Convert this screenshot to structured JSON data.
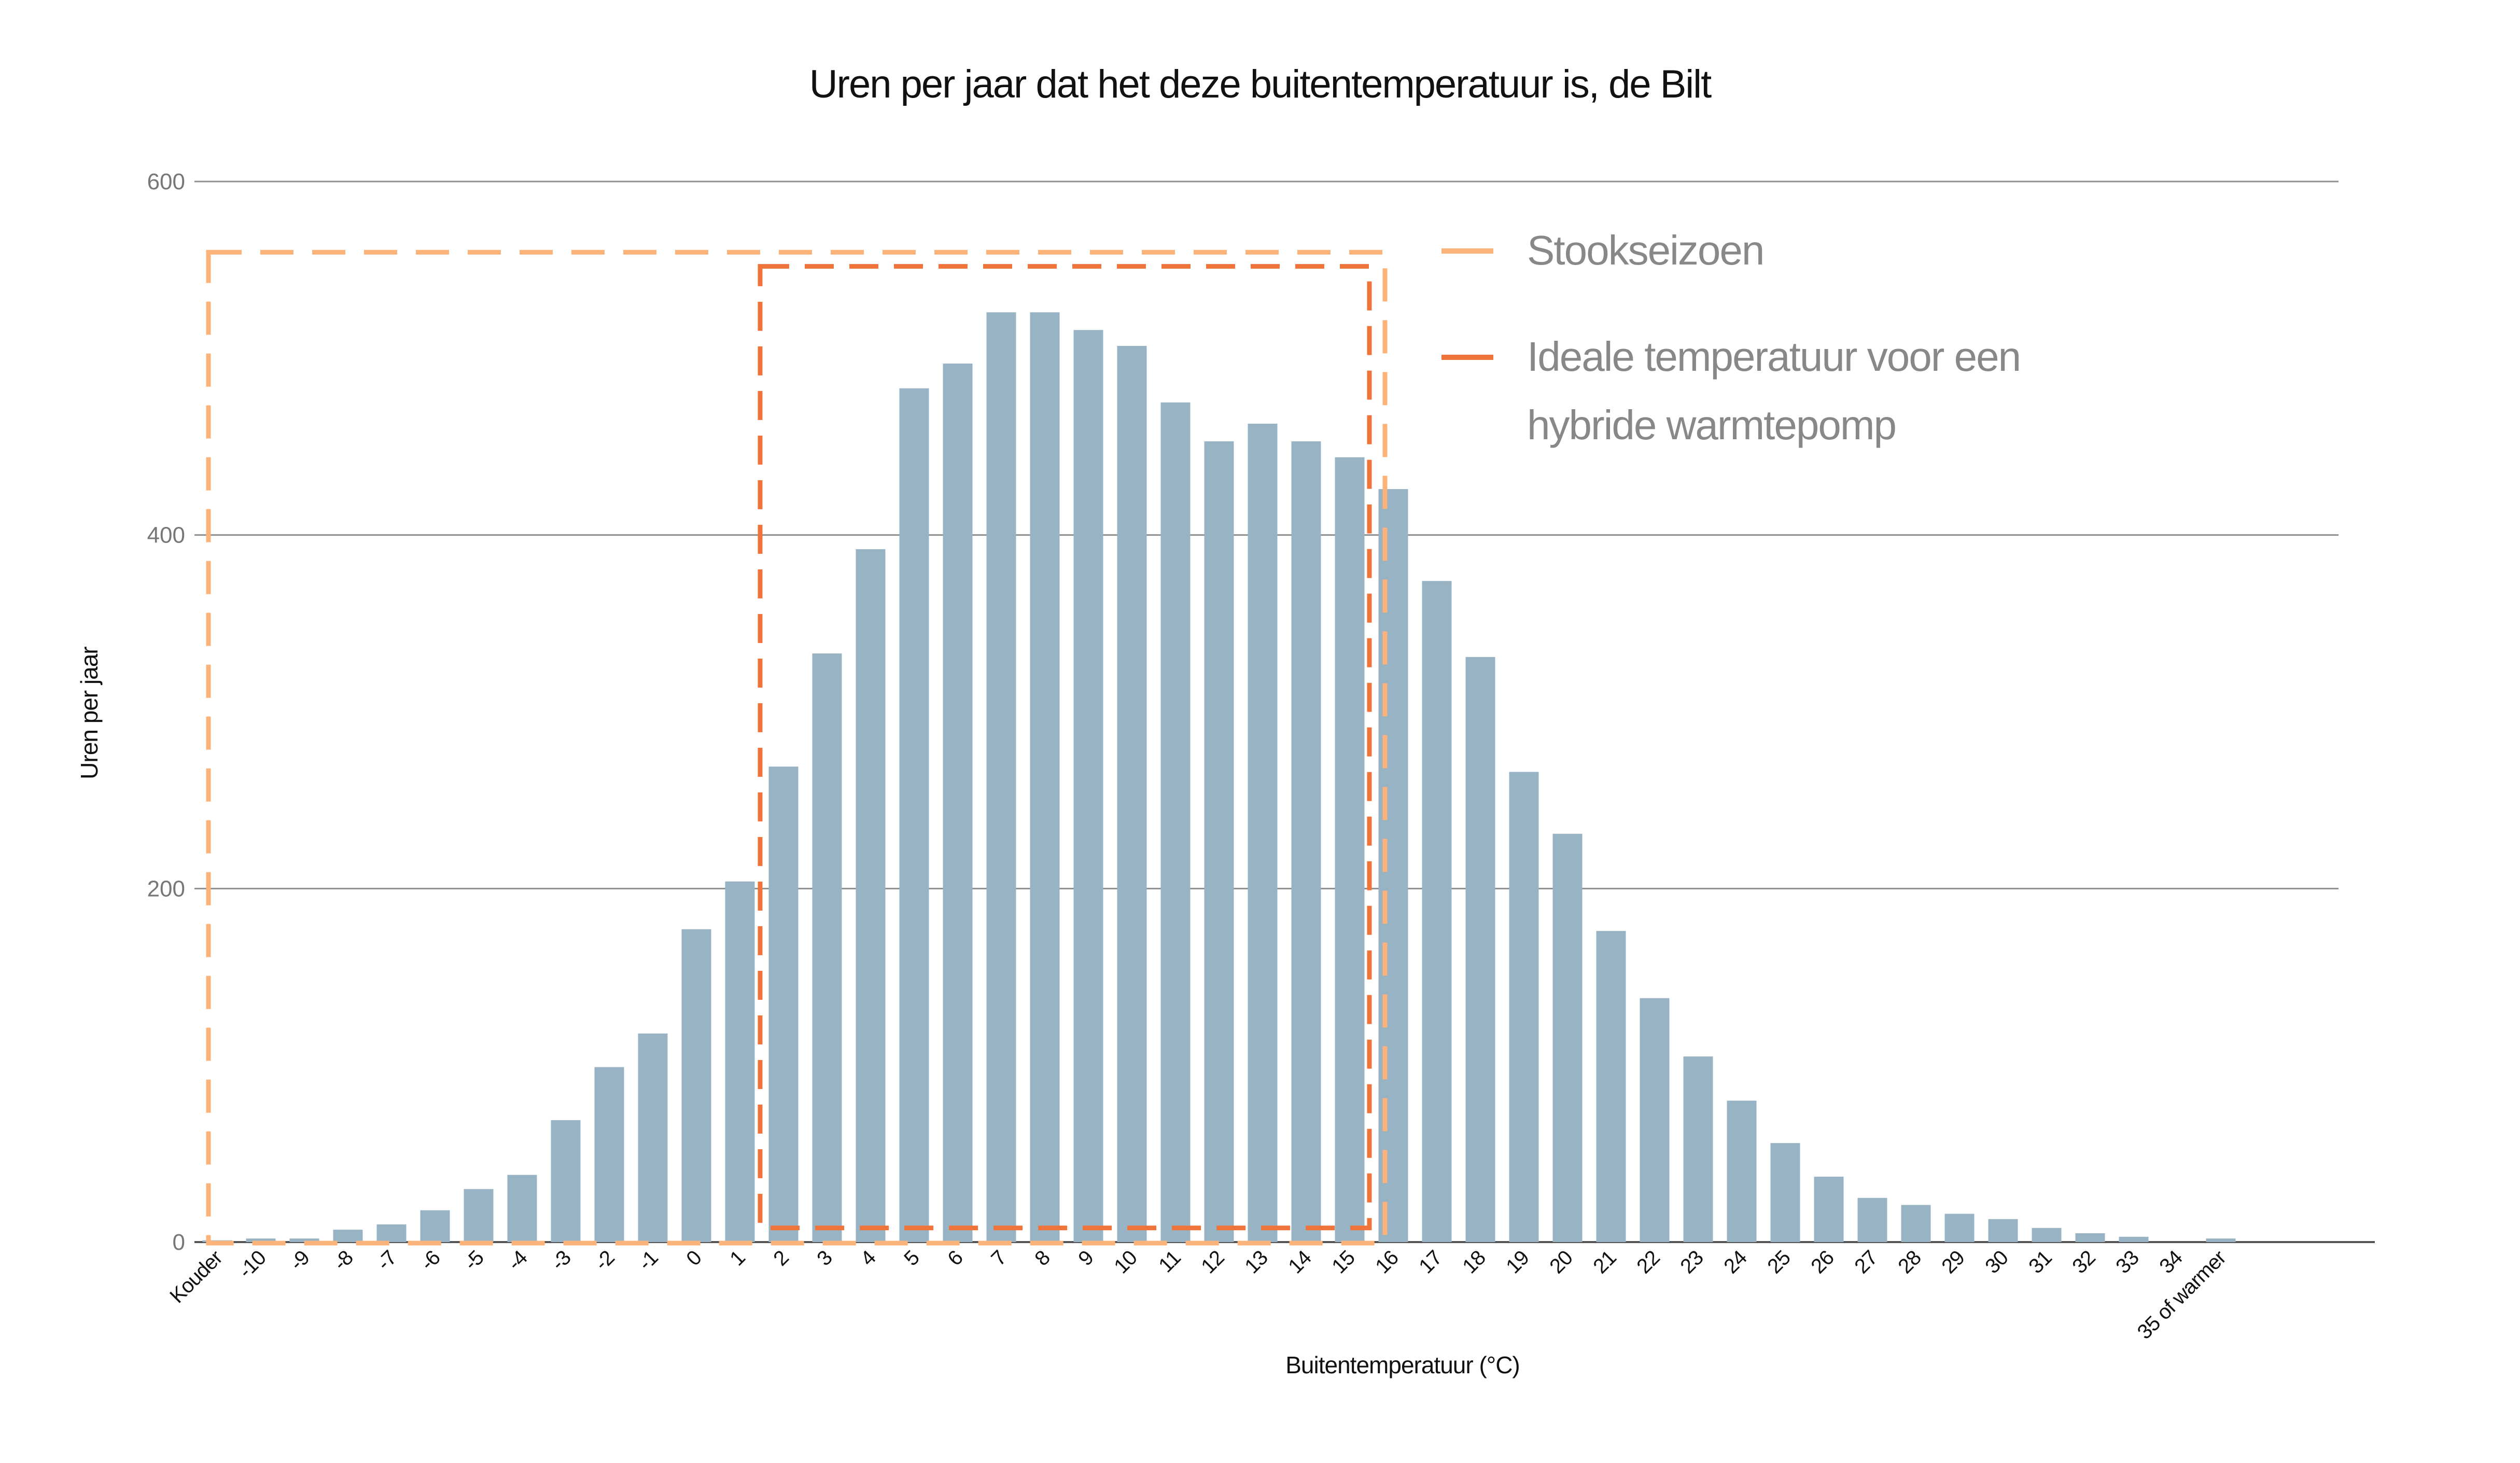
{
  "chart_data": {
    "type": "bar",
    "title": "Uren per jaar dat het deze buitentemperatuur is, de Bilt",
    "xlabel": "Buitentemperatuur (°C)",
    "ylabel": "Uren per jaar",
    "ylim": [
      0,
      600
    ],
    "yticks": [
      0,
      200,
      400,
      600
    ],
    "grid": true,
    "categories": [
      "Kouder",
      "-10",
      "-9",
      "-8",
      "-7",
      "-6",
      "-5",
      "-4",
      "-3",
      "-2",
      "-1",
      "0",
      "1",
      "2",
      "3",
      "4",
      "5",
      "6",
      "7",
      "8",
      "9",
      "10",
      "11",
      "12",
      "13",
      "14",
      "15",
      "16",
      "17",
      "18",
      "19",
      "20",
      "21",
      "22",
      "23",
      "24",
      "25",
      "26",
      "27",
      "28",
      "29",
      "30",
      "31",
      "32",
      "33",
      "34",
      "35 of warmer"
    ],
    "values": [
      1,
      2,
      2,
      7,
      10,
      18,
      30,
      38,
      69,
      99,
      118,
      177,
      204,
      269,
      333,
      392,
      483,
      497,
      526,
      526,
      516,
      507,
      475,
      453,
      463,
      453,
      444,
      426,
      374,
      331,
      266,
      231,
      176,
      138,
      105,
      80,
      56,
      37,
      25,
      21,
      16,
      13,
      8,
      5,
      3,
      0,
      2
    ],
    "bar_color": "#98b3c3",
    "legend": [
      {
        "label_lines": [
          "Stookseizoen"
        ],
        "color": "#fbb37a"
      },
      {
        "label_lines": [
          "Ideale temperatuur voor een",
          "hybride warmtepomp"
        ],
        "color": "#ef743c"
      }
    ],
    "legend_position": "right",
    "highlight_regions": [
      {
        "legend_index": 0,
        "from_category": "Kouder",
        "to_category": "15",
        "value_top": 560
      },
      {
        "legend_index": 1,
        "from_category": "2",
        "to_category": "15",
        "value_top": 552,
        "value_bottom": 8
      }
    ]
  }
}
